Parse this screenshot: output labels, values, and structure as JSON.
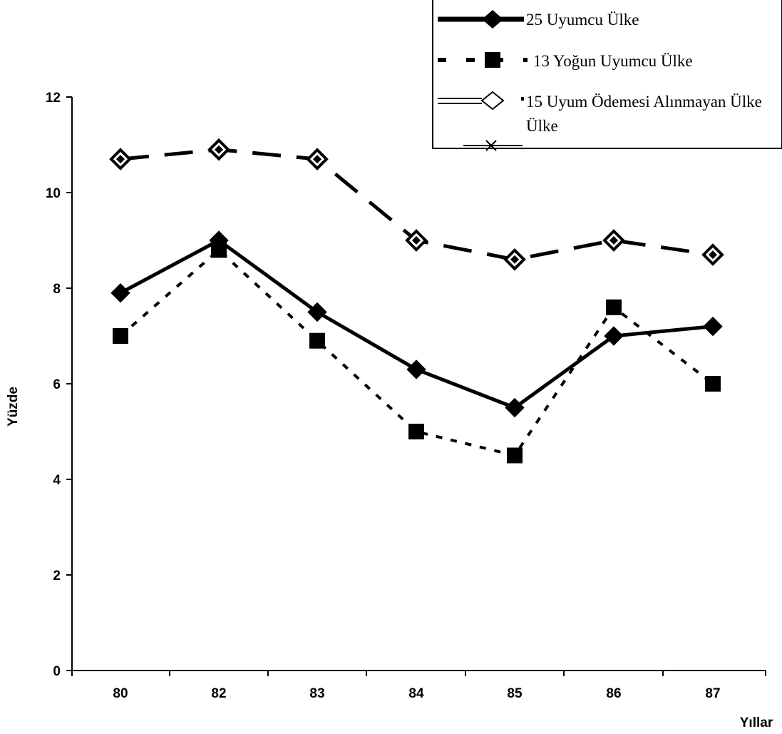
{
  "chart_data": {
    "type": "line",
    "title": "",
    "xlabel": "Yıllar",
    "ylabel": "Yüzde",
    "categories": [
      "80",
      "82",
      "83",
      "84",
      "85",
      "86",
      "87"
    ],
    "ylim": [
      0,
      12
    ],
    "yticks": [
      0,
      2,
      4,
      6,
      8,
      10,
      12
    ],
    "grid": false,
    "legend_position": "top-right",
    "series": [
      {
        "name": "25 Uyumcu Ülke",
        "values": [
          7.9,
          9.0,
          7.5,
          6.3,
          5.5,
          7.0,
          7.2
        ],
        "marker": "diamond",
        "line_style": "solid",
        "color": "#000000"
      },
      {
        "name": "13 Yoğun Uyumcu Ülke",
        "values": [
          7.0,
          8.8,
          6.9,
          5.0,
          4.5,
          7.6,
          6.0
        ],
        "marker": "square",
        "line_style": "dashed",
        "color": "#000000"
      },
      {
        "name": "15 Uyum Ödemesi Alınmayan Ülke",
        "values": [
          10.7,
          10.9,
          10.7,
          9.0,
          8.6,
          9.0,
          8.7
        ],
        "marker": "diamond",
        "line_style": "long-dashed",
        "color": "#000000"
      }
    ],
    "legend_extra_line": "Ülke"
  }
}
